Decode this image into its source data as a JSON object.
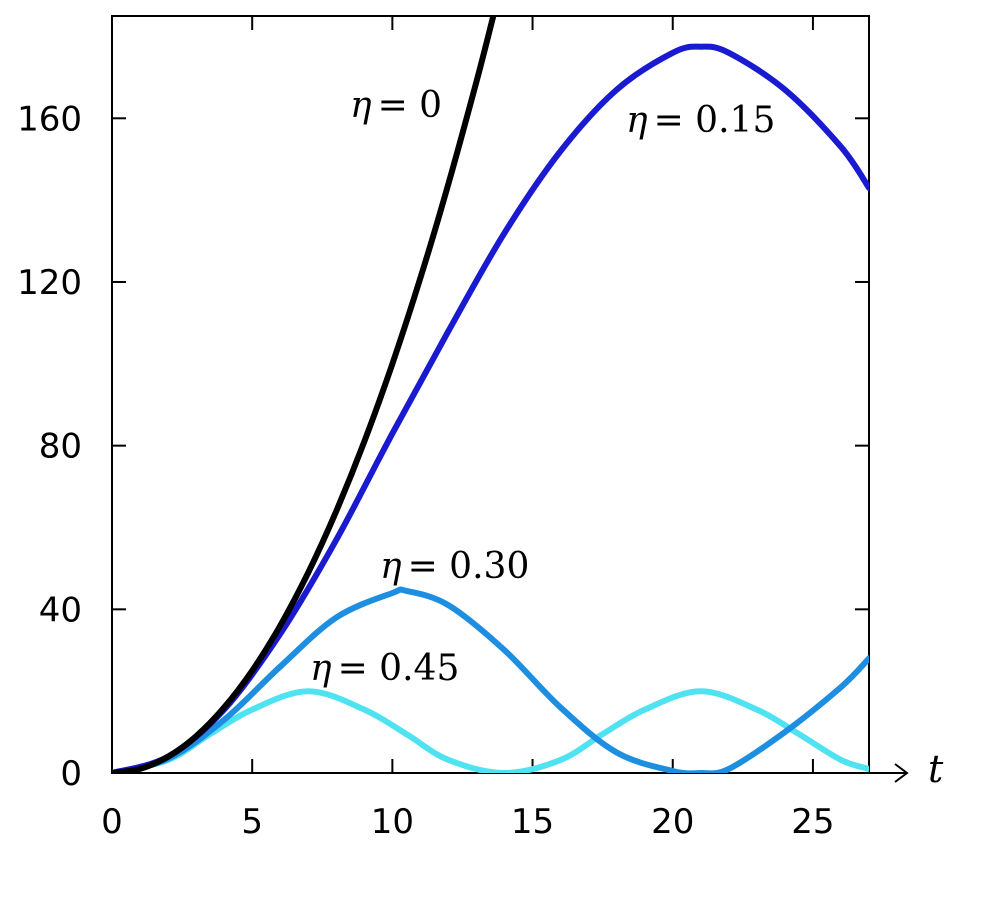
{
  "chart_data": {
    "type": "line",
    "title": "",
    "xlabel": "t",
    "ylabel": "",
    "xlim": [
      0,
      27
    ],
    "ylim": [
      0,
      185
    ],
    "xticks": [
      "0",
      "5",
      "10",
      "15",
      "20",
      "25"
    ],
    "yticks": [
      "0",
      "40",
      "80",
      "120",
      "160"
    ],
    "grid": false,
    "legend": "none",
    "series": [
      {
        "name": "η = 0",
        "color": "#000000",
        "x": [
          0,
          1,
          2,
          3,
          4,
          5,
          6,
          7,
          8,
          9,
          10,
          11,
          12,
          13,
          13.6
        ],
        "y": [
          0,
          1,
          4,
          9,
          16,
          25,
          36,
          49,
          64,
          81,
          100,
          121,
          144,
          169,
          185
        ]
      },
      {
        "name": "η = 0.15",
        "color": "#1a1ad0",
        "x": [
          0,
          2,
          4,
          6,
          8,
          10,
          12,
          14,
          16,
          18,
          20,
          21,
          22,
          24,
          26,
          27
        ],
        "y": [
          0,
          4,
          15.5,
          34,
          57,
          83,
          108,
          132,
          152,
          167,
          176,
          177.5,
          176,
          167,
          153,
          143
        ]
      },
      {
        "name": "η = 0.30",
        "color": "#1e8fe0",
        "x": [
          0,
          2,
          4,
          6,
          8,
          10,
          10.5,
          12,
          14,
          16,
          18,
          20,
          21,
          22,
          24,
          26,
          27
        ],
        "y": [
          0,
          3.5,
          13,
          26,
          38,
          44,
          44.5,
          41,
          30,
          16,
          5,
          0.5,
          0,
          1,
          10,
          21,
          28
        ]
      },
      {
        "name": "η = 0.45",
        "color": "#4fe3f2",
        "x": [
          0,
          2,
          3.5,
          5,
          7,
          9,
          10.5,
          12,
          14,
          16,
          17.5,
          19,
          21,
          23,
          24.5,
          26,
          27
        ],
        "y": [
          0,
          3.2,
          9.5,
          15.5,
          20,
          15.5,
          9.5,
          3.2,
          0,
          3.2,
          9.5,
          15.5,
          20,
          15.5,
          9.5,
          3.2,
          1
        ]
      }
    ]
  },
  "labels": {
    "eta": "η",
    "s0": "= 0",
    "s15": "= 0.15",
    "s30": "= 0.30",
    "s45": "= 0.45"
  }
}
